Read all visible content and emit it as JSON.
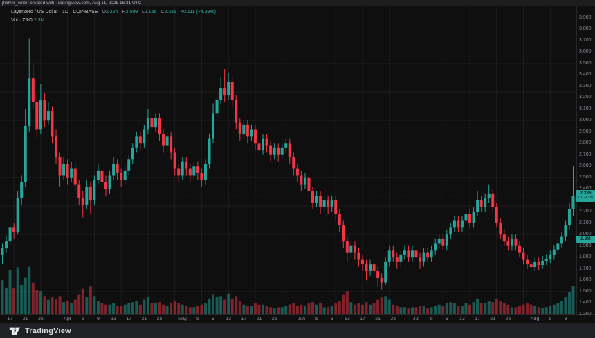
{
  "topbar": {
    "text": "jhalver_writer created with TradingView.com, Aug 11, 2025 16:31 UTC"
  },
  "legend": {
    "symbol": "LayerZero / US Dollar",
    "separator": "·",
    "interval": "1D",
    "exchange": "COINBASE",
    "ohlc": [
      {
        "k": "O",
        "v": "2.224"
      },
      {
        "k": "H",
        "v": "2.599"
      },
      {
        "k": "L",
        "v": "2.166"
      },
      {
        "k": "C",
        "v": "2.336"
      }
    ],
    "change": "+0.111 (+4.99%)",
    "volume_label": "Vol",
    "volume_ticker": "ZRO",
    "volume_value": "2.3M"
  },
  "price_axis": {
    "labels": [
      "3.900",
      "3.800",
      "3.700",
      "3.600",
      "3.500",
      "3.400",
      "3.300",
      "3.200",
      "3.100",
      "3.000",
      "2.900",
      "2.800",
      "2.700",
      "2.600",
      "2.500",
      "2.400",
      "2.300",
      "2.200",
      "2.100",
      "2.000",
      "1.900",
      "1.800",
      "1.700",
      "1.600",
      "1.500",
      "1.400",
      "1.300"
    ],
    "current_price_label": {
      "price": "2.336",
      "countdown": "07:28:05"
    },
    "volume_axis_label": "2.3M"
  },
  "time_axis": {
    "ticks": [
      {
        "i": 2,
        "label": "17"
      },
      {
        "i": 6,
        "label": "21"
      },
      {
        "i": 10,
        "label": "25"
      },
      {
        "i": 17,
        "label": "Apr"
      },
      {
        "i": 21,
        "label": "5"
      },
      {
        "i": 25,
        "label": "9"
      },
      {
        "i": 29,
        "label": "13"
      },
      {
        "i": 33,
        "label": "17"
      },
      {
        "i": 37,
        "label": "21"
      },
      {
        "i": 41,
        "label": "25"
      },
      {
        "i": 47,
        "label": "May"
      },
      {
        "i": 51,
        "label": "5"
      },
      {
        "i": 55,
        "label": "9"
      },
      {
        "i": 59,
        "label": "13"
      },
      {
        "i": 63,
        "label": "17"
      },
      {
        "i": 67,
        "label": "21"
      },
      {
        "i": 71,
        "label": "25"
      },
      {
        "i": 78,
        "label": "Jun"
      },
      {
        "i": 82,
        "label": "5"
      },
      {
        "i": 86,
        "label": "9"
      },
      {
        "i": 90,
        "label": "13"
      },
      {
        "i": 94,
        "label": "17"
      },
      {
        "i": 98,
        "label": "21"
      },
      {
        "i": 102,
        "label": "25"
      },
      {
        "i": 108,
        "label": "Jul"
      },
      {
        "i": 112,
        "label": "5"
      },
      {
        "i": 116,
        "label": "9"
      },
      {
        "i": 120,
        "label": "13"
      },
      {
        "i": 124,
        "label": "17"
      },
      {
        "i": 128,
        "label": "21"
      },
      {
        "i": 132,
        "label": "25"
      },
      {
        "i": 139,
        "label": "Aug"
      },
      {
        "i": 143,
        "label": "5"
      },
      {
        "i": 147,
        "label": "9"
      }
    ]
  },
  "footer": {
    "brand": "TradingView"
  },
  "colors": {
    "up": "#26a69a",
    "down": "#f23645",
    "grid": "rgba(255,255,255,0.055)",
    "separator": "rgba(255,255,255,0.10)",
    "last_price_line": "rgba(38,166,154,0.40)",
    "label_bg": "#26a69a"
  },
  "chart_data": {
    "type": "candlestick+volume",
    "title": "LayerZero / US Dollar",
    "exchange": "COINBASE",
    "interval": "1D",
    "start_date": "2025-03-15",
    "end_date": "2025-08-11",
    "last_price": 2.336,
    "change_abs": 0.111,
    "change_pct": 4.99,
    "volume_today_m": 2.3,
    "price_axis_range": [
      1.3,
      3.9
    ],
    "grid": {
      "h_step": 0.25,
      "v_step_bars": 7
    },
    "candles_format": [
      "open",
      "high",
      "low",
      "close",
      "volume_m"
    ],
    "candles": [
      [
        1.82,
        1.92,
        1.74,
        1.88,
        2.8
      ],
      [
        1.88,
        1.99,
        1.84,
        1.94,
        2.2
      ],
      [
        1.94,
        2.12,
        1.9,
        2.06,
        3.6
      ],
      [
        2.06,
        2.1,
        1.96,
        2.02,
        2.2
      ],
      [
        2.02,
        2.38,
        2.0,
        2.32,
        3.8
      ],
      [
        2.32,
        2.52,
        2.26,
        2.46,
        2.4
      ],
      [
        2.46,
        3.1,
        2.42,
        2.95,
        3.0
      ],
      [
        2.95,
        3.72,
        2.9,
        3.37,
        3.9
      ],
      [
        3.37,
        3.5,
        3.1,
        3.16,
        2.6
      ],
      [
        3.16,
        3.22,
        2.85,
        2.92,
        2.0
      ],
      [
        2.92,
        3.32,
        2.88,
        3.18,
        1.9
      ],
      [
        3.18,
        3.24,
        2.94,
        3.0,
        1.5
      ],
      [
        3.0,
        3.16,
        2.96,
        3.08,
        1.2
      ],
      [
        3.08,
        3.12,
        2.8,
        2.86,
        1.4
      ],
      [
        2.86,
        2.92,
        2.62,
        2.68,
        1.3
      ],
      [
        2.68,
        2.72,
        2.42,
        2.52,
        1.5
      ],
      [
        2.52,
        2.68,
        2.48,
        2.62,
        1.0
      ],
      [
        2.62,
        2.66,
        2.44,
        2.5,
        1.1
      ],
      [
        2.5,
        2.64,
        2.46,
        2.58,
        0.9
      ],
      [
        2.58,
        2.62,
        2.38,
        2.44,
        1.2
      ],
      [
        2.44,
        2.48,
        2.26,
        2.32,
        1.6
      ],
      [
        2.32,
        2.38,
        2.15,
        2.26,
        2.1
      ],
      [
        2.26,
        2.48,
        2.22,
        2.42,
        1.4
      ],
      [
        2.42,
        2.46,
        2.18,
        2.3,
        2.3
      ],
      [
        2.3,
        2.52,
        2.26,
        2.48,
        1.5
      ],
      [
        2.48,
        2.62,
        2.44,
        2.56,
        1.1
      ],
      [
        2.56,
        2.6,
        2.4,
        2.46,
        0.9
      ],
      [
        2.46,
        2.52,
        2.34,
        2.4,
        0.8
      ],
      [
        2.4,
        2.56,
        2.36,
        2.52,
        0.8
      ],
      [
        2.52,
        2.68,
        2.48,
        2.62,
        0.9
      ],
      [
        2.62,
        2.66,
        2.48,
        2.54,
        0.7
      ],
      [
        2.54,
        2.58,
        2.42,
        2.48,
        0.7
      ],
      [
        2.48,
        2.6,
        2.44,
        2.56,
        0.8
      ],
      [
        2.56,
        2.7,
        2.52,
        2.66,
        0.9
      ],
      [
        2.66,
        2.8,
        2.62,
        2.76,
        1.0
      ],
      [
        2.76,
        2.9,
        2.72,
        2.86,
        1.1
      ],
      [
        2.86,
        2.9,
        2.74,
        2.8,
        0.8
      ],
      [
        2.8,
        2.96,
        2.76,
        2.92,
        1.2
      ],
      [
        2.92,
        3.1,
        2.88,
        3.02,
        1.4
      ],
      [
        3.02,
        3.06,
        2.88,
        2.94,
        0.9
      ],
      [
        2.94,
        3.06,
        2.9,
        3.02,
        0.9
      ],
      [
        3.02,
        3.06,
        2.82,
        2.88,
        1.0
      ],
      [
        2.88,
        2.92,
        2.72,
        2.78,
        0.8
      ],
      [
        2.78,
        2.9,
        2.74,
        2.86,
        0.7
      ],
      [
        2.86,
        2.9,
        2.66,
        2.72,
        0.9
      ],
      [
        2.72,
        2.76,
        2.52,
        2.58,
        1.1
      ],
      [
        2.58,
        2.62,
        2.46,
        2.52,
        0.9
      ],
      [
        2.52,
        2.68,
        2.48,
        2.64,
        0.8
      ],
      [
        2.64,
        2.68,
        2.52,
        2.58,
        0.7
      ],
      [
        2.58,
        2.62,
        2.46,
        2.52,
        0.6
      ],
      [
        2.52,
        2.64,
        2.48,
        2.6,
        0.6
      ],
      [
        2.6,
        2.64,
        2.48,
        2.54,
        0.7
      ],
      [
        2.54,
        2.58,
        2.42,
        2.48,
        0.8
      ],
      [
        2.48,
        2.66,
        2.44,
        2.62,
        0.9
      ],
      [
        2.62,
        2.88,
        2.58,
        2.84,
        1.3
      ],
      [
        2.84,
        3.15,
        2.8,
        3.06,
        1.6
      ],
      [
        3.06,
        3.24,
        3.02,
        3.18,
        1.4
      ],
      [
        3.18,
        3.38,
        3.14,
        3.28,
        1.5
      ],
      [
        3.28,
        3.45,
        3.16,
        3.22,
        1.2
      ],
      [
        3.22,
        3.42,
        3.18,
        3.34,
        1.7
      ],
      [
        3.34,
        3.38,
        3.12,
        3.18,
        1.3
      ],
      [
        3.18,
        3.22,
        2.92,
        2.98,
        1.5
      ],
      [
        2.98,
        3.02,
        2.82,
        2.88,
        1.1
      ],
      [
        2.88,
        3.0,
        2.84,
        2.96,
        0.8
      ],
      [
        2.96,
        3.0,
        2.8,
        2.86,
        0.7
      ],
      [
        2.86,
        2.96,
        2.82,
        2.92,
        0.7
      ],
      [
        2.92,
        2.96,
        2.74,
        2.8,
        0.9
      ],
      [
        2.8,
        2.84,
        2.68,
        2.74,
        0.8
      ],
      [
        2.74,
        2.88,
        2.7,
        2.84,
        0.8
      ],
      [
        2.84,
        2.88,
        2.72,
        2.78,
        0.7
      ],
      [
        2.78,
        2.82,
        2.64,
        2.7,
        0.6
      ],
      [
        2.7,
        2.8,
        2.66,
        2.76,
        0.5
      ],
      [
        2.76,
        2.8,
        2.64,
        2.7,
        0.6
      ],
      [
        2.7,
        2.8,
        2.66,
        2.76,
        0.6
      ],
      [
        2.76,
        2.84,
        2.72,
        2.8,
        0.7
      ],
      [
        2.8,
        2.84,
        2.62,
        2.68,
        0.8
      ],
      [
        2.68,
        2.72,
        2.52,
        2.58,
        0.9
      ],
      [
        2.58,
        2.62,
        2.46,
        2.52,
        0.7
      ],
      [
        2.52,
        2.56,
        2.38,
        2.44,
        0.8
      ],
      [
        2.44,
        2.54,
        2.4,
        2.5,
        0.7
      ],
      [
        2.5,
        2.54,
        2.32,
        2.38,
        0.9
      ],
      [
        2.38,
        2.42,
        2.22,
        2.28,
        1.0
      ],
      [
        2.28,
        2.38,
        2.24,
        2.34,
        0.8
      ],
      [
        2.34,
        2.38,
        2.18,
        2.24,
        0.9
      ],
      [
        2.24,
        2.34,
        2.2,
        2.3,
        0.6
      ],
      [
        2.3,
        2.34,
        2.18,
        2.24,
        0.6
      ],
      [
        2.24,
        2.34,
        2.2,
        2.3,
        0.7
      ],
      [
        2.3,
        2.34,
        2.12,
        2.18,
        0.9
      ],
      [
        2.18,
        2.22,
        2.02,
        2.08,
        1.1
      ],
      [
        2.08,
        2.12,
        1.88,
        1.94,
        1.6
      ],
      [
        1.94,
        1.98,
        1.76,
        1.84,
        1.9
      ],
      [
        1.84,
        1.94,
        1.8,
        1.9,
        1.0
      ],
      [
        1.9,
        1.94,
        1.78,
        1.84,
        0.8
      ],
      [
        1.84,
        1.88,
        1.72,
        1.78,
        0.9
      ],
      [
        1.78,
        1.82,
        1.68,
        1.74,
        0.8
      ],
      [
        1.74,
        1.78,
        1.6,
        1.68,
        1.0
      ],
      [
        1.68,
        1.78,
        1.64,
        1.74,
        0.8
      ],
      [
        1.74,
        1.78,
        1.62,
        1.68,
        0.9
      ],
      [
        1.68,
        1.72,
        1.54,
        1.62,
        1.2
      ],
      [
        1.62,
        1.66,
        1.52,
        1.58,
        1.4
      ],
      [
        1.58,
        1.8,
        1.56,
        1.76,
        1.5
      ],
      [
        1.76,
        1.9,
        1.72,
        1.86,
        1.2
      ],
      [
        1.86,
        1.9,
        1.76,
        1.8,
        0.8
      ],
      [
        1.8,
        1.84,
        1.7,
        1.76,
        0.7
      ],
      [
        1.76,
        1.86,
        1.72,
        1.82,
        0.6
      ],
      [
        1.82,
        1.9,
        1.78,
        1.86,
        0.6
      ],
      [
        1.86,
        1.9,
        1.76,
        1.8,
        0.5
      ],
      [
        1.8,
        1.9,
        1.76,
        1.86,
        0.6
      ],
      [
        1.86,
        1.9,
        1.76,
        1.8,
        0.6
      ],
      [
        1.8,
        1.84,
        1.7,
        1.76,
        0.7
      ],
      [
        1.76,
        1.88,
        1.72,
        1.84,
        0.7
      ],
      [
        1.84,
        1.88,
        1.76,
        1.8,
        0.5
      ],
      [
        1.8,
        1.9,
        1.76,
        1.86,
        0.6
      ],
      [
        1.86,
        1.96,
        1.82,
        1.92,
        0.7
      ],
      [
        1.92,
        2.0,
        1.88,
        1.96,
        0.8
      ],
      [
        1.96,
        2.0,
        1.86,
        1.9,
        0.7
      ],
      [
        1.9,
        2.04,
        1.86,
        2.0,
        0.9
      ],
      [
        2.0,
        2.1,
        1.96,
        2.06,
        1.0
      ],
      [
        2.06,
        2.16,
        2.02,
        2.12,
        0.9
      ],
      [
        2.12,
        2.16,
        2.02,
        2.06,
        0.7
      ],
      [
        2.06,
        2.16,
        2.02,
        2.12,
        0.7
      ],
      [
        2.12,
        2.22,
        2.08,
        2.18,
        0.9
      ],
      [
        2.18,
        2.22,
        2.06,
        2.1,
        0.8
      ],
      [
        2.1,
        2.24,
        2.06,
        2.2,
        1.0
      ],
      [
        2.2,
        2.38,
        2.16,
        2.3,
        1.3
      ],
      [
        2.3,
        2.34,
        2.2,
        2.24,
        0.9
      ],
      [
        2.24,
        2.36,
        2.2,
        2.32,
        0.9
      ],
      [
        2.32,
        2.44,
        2.28,
        2.36,
        1.1
      ],
      [
        2.36,
        2.4,
        2.2,
        2.24,
        1.0
      ],
      [
        2.24,
        2.28,
        2.06,
        2.1,
        1.3
      ],
      [
        2.1,
        2.14,
        1.96,
        2.0,
        1.1
      ],
      [
        2.0,
        2.04,
        1.9,
        1.94,
        0.9
      ],
      [
        1.94,
        1.98,
        1.86,
        1.9,
        0.8
      ],
      [
        1.9,
        2.0,
        1.86,
        1.96,
        0.6
      ],
      [
        1.96,
        2.0,
        1.86,
        1.9,
        0.6
      ],
      [
        1.9,
        1.94,
        1.8,
        1.84,
        0.7
      ],
      [
        1.84,
        1.88,
        1.74,
        1.78,
        0.8
      ],
      [
        1.78,
        1.82,
        1.7,
        1.74,
        0.9
      ],
      [
        1.74,
        1.78,
        1.66,
        1.71,
        0.8
      ],
      [
        1.71,
        1.8,
        1.68,
        1.76,
        0.7
      ],
      [
        1.76,
        1.8,
        1.69,
        1.73,
        0.6
      ],
      [
        1.73,
        1.81,
        1.7,
        1.77,
        0.5
      ],
      [
        1.77,
        1.83,
        1.73,
        1.79,
        0.6
      ],
      [
        1.79,
        1.86,
        1.75,
        1.82,
        0.7
      ],
      [
        1.82,
        1.91,
        1.78,
        1.87,
        0.8
      ],
      [
        1.87,
        1.96,
        1.83,
        1.92,
        0.9
      ],
      [
        1.92,
        2.02,
        1.88,
        1.98,
        1.1
      ],
      [
        1.98,
        2.12,
        1.94,
        2.08,
        1.4
      ],
      [
        2.08,
        2.28,
        2.04,
        2.225,
        1.8
      ],
      [
        2.224,
        2.599,
        2.166,
        2.336,
        2.3
      ]
    ]
  }
}
